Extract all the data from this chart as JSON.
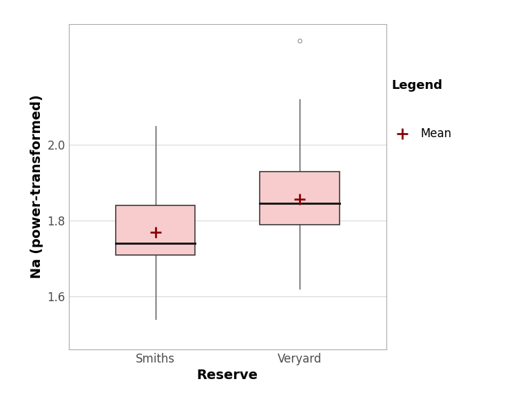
{
  "groups": [
    "Smiths",
    "Veryard"
  ],
  "smiths": {
    "q1": 1.71,
    "median": 1.74,
    "q3": 1.84,
    "whisker_low": 1.54,
    "whisker_high": 2.05,
    "mean": 1.77,
    "outliers": []
  },
  "veryard": {
    "q1": 1.79,
    "median": 1.845,
    "q3": 1.93,
    "whisker_low": 1.62,
    "whisker_high": 2.12,
    "mean": 1.856,
    "outliers": [
      2.275
    ]
  },
  "box_color": "#F8CCCC",
  "box_edge_color": "#3d3d3d",
  "median_color": "#1a1a1a",
  "mean_color": "#8B0000",
  "whisker_color": "#3d3d3d",
  "outlier_color": "#888888",
  "background_color": "#FFFFFF",
  "panel_background": "#FFFFFF",
  "grid_color": "#D9D9D9",
  "panel_border_color": "#AAAAAA",
  "xlabel": "Reserve",
  "ylabel": "Na (power-transformed)",
  "tick_label_color": "#4D4D4D",
  "axis_label_color": "#000000",
  "ylim": [
    1.46,
    2.32
  ],
  "yticks": [
    1.6,
    1.8,
    2.0
  ],
  "box_width": 0.55,
  "axis_label_fontsize": 14,
  "tick_fontsize": 12,
  "legend_title": "Legend",
  "legend_label": "Mean",
  "legend_title_fontsize": 13,
  "legend_fontsize": 12
}
